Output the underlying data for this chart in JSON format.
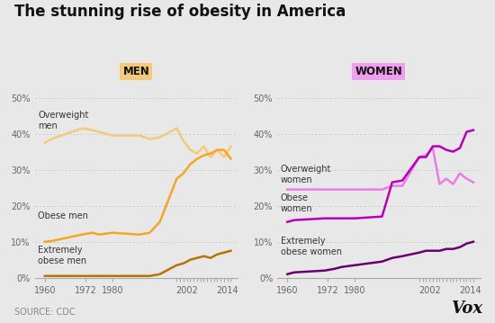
{
  "title": "The stunning rise of obesity in America",
  "background_color": "#e8e8e8",
  "source_text": "SOURCE: CDC",
  "vox_text": "Vox",
  "men_label": "MEN",
  "men_label_bg": "#f5c97a",
  "women_label": "WOMEN",
  "women_label_bg": "#f09ef0",
  "years_men": [
    1960,
    1962,
    1971,
    1974,
    1976,
    1980,
    1988,
    1991,
    1994,
    1999,
    2001,
    2003,
    2005,
    2007,
    2009,
    2011,
    2013,
    2015
  ],
  "overweight_men": [
    37.5,
    38.5,
    41.5,
    41.0,
    40.5,
    39.5,
    39.5,
    38.5,
    39.0,
    41.5,
    38.0,
    35.5,
    34.5,
    36.5,
    33.5,
    35.5,
    33.5,
    36.5
  ],
  "obese_men": [
    10.0,
    10.2,
    12.0,
    12.5,
    12.0,
    12.5,
    12.0,
    12.5,
    15.5,
    27.5,
    29.0,
    31.5,
    33.0,
    34.0,
    34.5,
    35.5,
    35.5,
    33.0
  ],
  "ext_obese_men": [
    0.5,
    0.5,
    0.5,
    0.5,
    0.5,
    0.5,
    0.5,
    0.5,
    1.0,
    3.5,
    4.0,
    5.0,
    5.5,
    6.0,
    5.5,
    6.5,
    7.0,
    7.5
  ],
  "years_women": [
    1960,
    1962,
    1971,
    1974,
    1976,
    1980,
    1988,
    1991,
    1994,
    1999,
    2001,
    2003,
    2005,
    2007,
    2009,
    2011,
    2013,
    2015
  ],
  "overweight_women": [
    24.5,
    24.5,
    24.5,
    24.5,
    24.5,
    24.5,
    24.5,
    25.5,
    25.5,
    33.5,
    34.0,
    36.0,
    26.0,
    27.5,
    26.0,
    29.0,
    27.5,
    26.5
  ],
  "obese_women": [
    15.5,
    16.0,
    16.5,
    16.5,
    16.5,
    16.5,
    17.0,
    26.5,
    27.0,
    33.5,
    33.5,
    36.5,
    36.5,
    35.5,
    35.0,
    36.0,
    40.5,
    41.0
  ],
  "ext_obese_women": [
    1.0,
    1.5,
    2.0,
    2.5,
    3.0,
    3.5,
    4.5,
    5.5,
    6.0,
    7.0,
    7.5,
    7.5,
    7.5,
    8.0,
    8.0,
    8.5,
    9.5,
    10.0
  ],
  "color_overweight_men": "#f5c97a",
  "color_obese_men": "#f5a623",
  "color_ext_obese_men": "#b87300",
  "color_overweight_women": "#e87de8",
  "color_obese_women": "#b800b8",
  "color_ext_obese_women": "#6a0070",
  "ylim": [
    0,
    52
  ],
  "yticks": [
    0,
    10,
    20,
    30,
    40,
    50
  ],
  "xlim": [
    1957,
    2017
  ],
  "xtick_values": [
    1960,
    1972,
    1980,
    2002,
    2014
  ],
  "xtick_labels": [
    "1960",
    "1972",
    "1980",
    "2002",
    "2014"
  ]
}
